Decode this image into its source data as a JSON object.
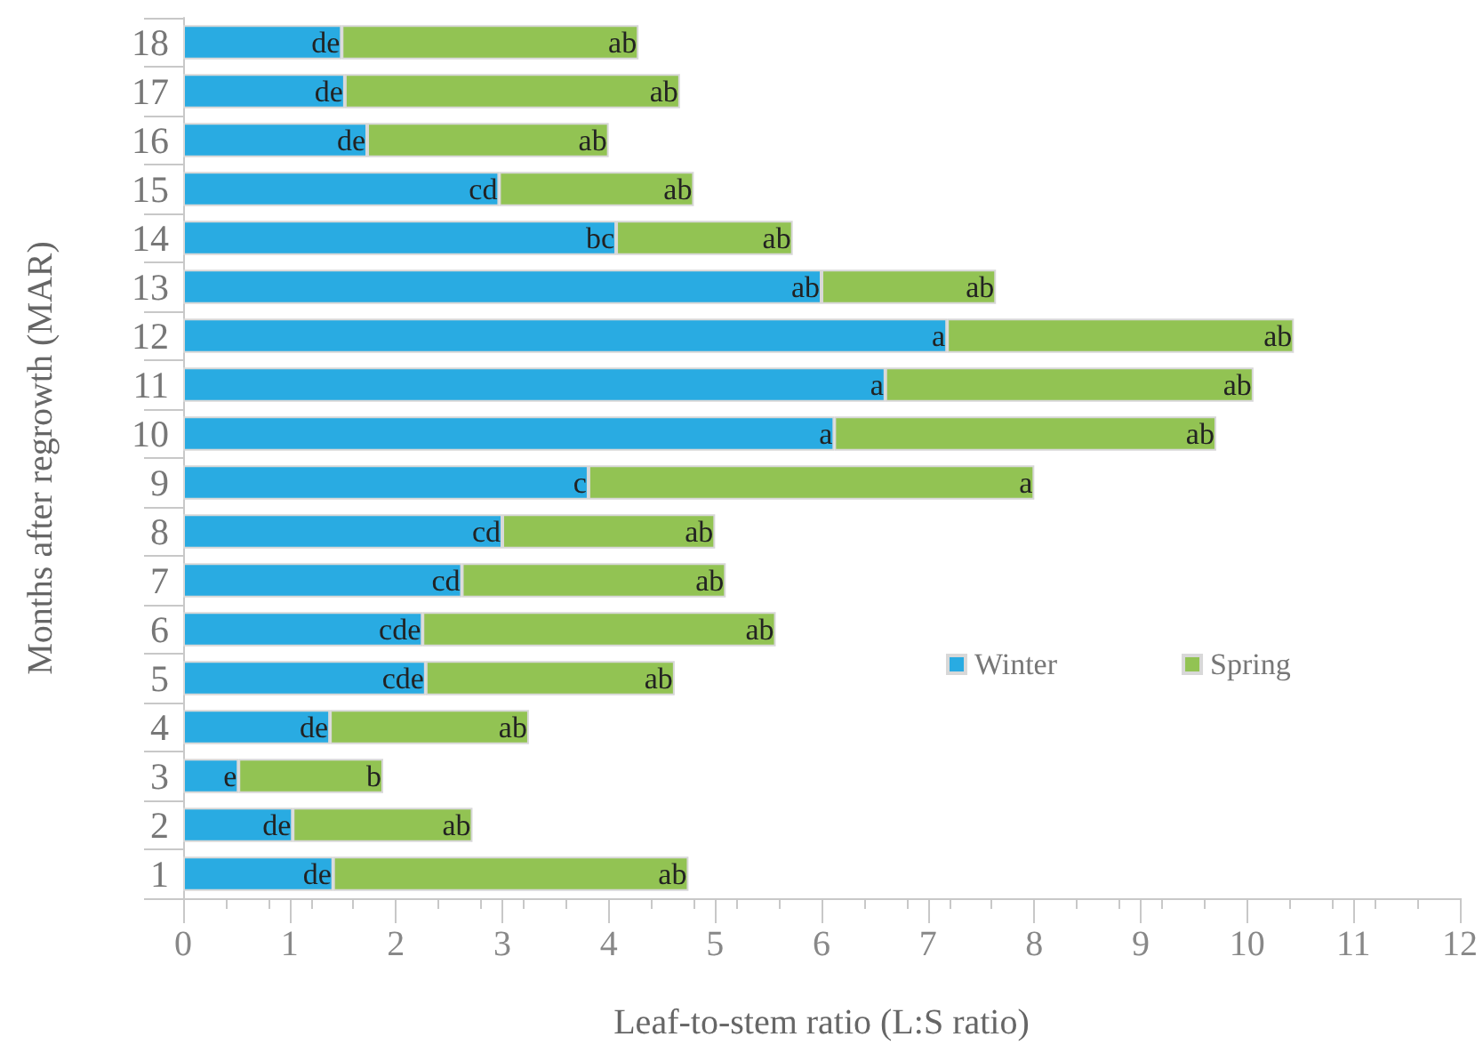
{
  "chart_data": {
    "type": "bar",
    "orientation": "horizontal",
    "stacked": true,
    "xlabel": "Leaf-to-stem ratio (L:S ratio)",
    "ylabel": "Months after regrowth (MAR)",
    "categories": [
      "18",
      "17",
      "16",
      "15",
      "14",
      "13",
      "12",
      "11",
      "10",
      "9",
      "8",
      "7",
      "6",
      "5",
      "4",
      "3",
      "2",
      "1"
    ],
    "series": [
      {
        "name": "Winter",
        "color": "#29abe2",
        "values": [
          1.49,
          1.52,
          1.73,
          2.97,
          4.07,
          6.0,
          7.18,
          6.6,
          6.12,
          3.81,
          3.0,
          2.62,
          2.25,
          2.28,
          1.38,
          0.52,
          1.03,
          1.41
        ],
        "value_labels": [
          "de",
          "de",
          "de",
          "cd",
          "bc",
          "ab",
          "a",
          "a",
          "a",
          "c",
          "cd",
          "cd",
          "cde",
          "cde",
          "de",
          "e",
          "de",
          "de"
        ]
      },
      {
        "name": "Spring",
        "color": "#92c353",
        "values": [
          2.79,
          3.15,
          2.27,
          1.83,
          1.66,
          1.64,
          3.26,
          3.46,
          3.59,
          4.19,
          2.0,
          2.48,
          3.32,
          2.34,
          1.87,
          1.36,
          1.69,
          3.34
        ],
        "value_labels": [
          "ab",
          "ab",
          "ab",
          "ab",
          "ab",
          "ab",
          "ab",
          "ab",
          "ab",
          "a",
          "ab",
          "ab",
          "ab",
          "ab",
          "ab",
          "b",
          "ab",
          "ab"
        ]
      }
    ],
    "xlim": [
      0,
      12
    ],
    "xticks": [
      0,
      1,
      2,
      3,
      4,
      5,
      6,
      7,
      8,
      9,
      10,
      11,
      12
    ],
    "grid": false,
    "legend": "right"
  }
}
